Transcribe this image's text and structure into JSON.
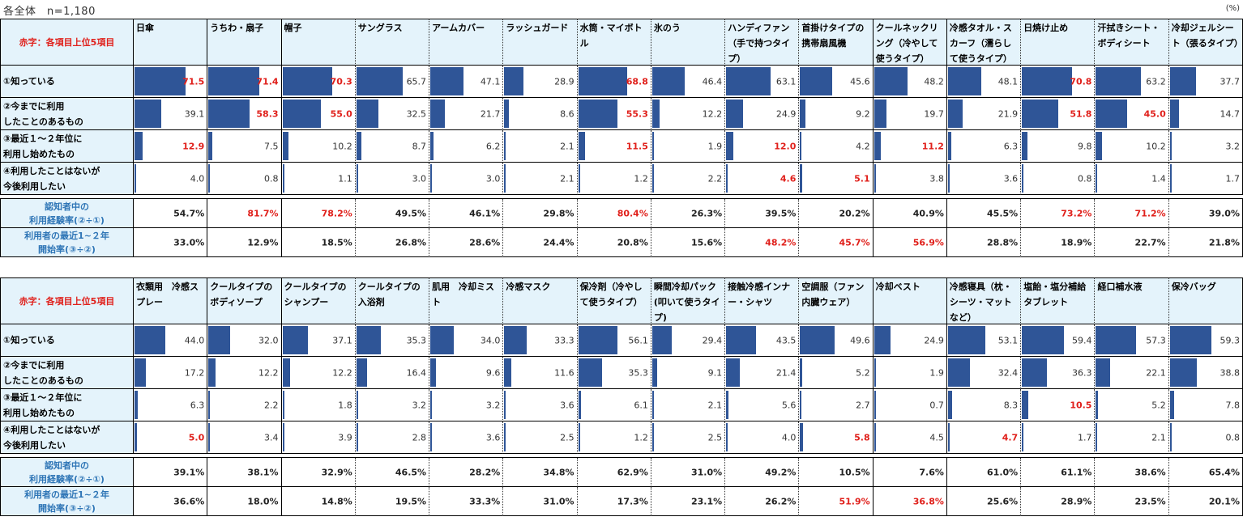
{
  "page": {
    "title": "各全体　n=1,180",
    "unit": "(%)"
  },
  "legend_note": "赤字：各項目上位5項目",
  "row_labels": [
    "①知っている",
    "②今までに利用\nしたことのあるもの",
    "③最近１～２年位に\n利用し始めたもの",
    "④利用したことはないが\n今後利用したい"
  ],
  "calc_labels": [
    "認知者中の\n利用経験率(②÷①)",
    "利用者の最近1~２年\n開始率(③÷②)"
  ],
  "colors": {
    "bar": "#2f5597",
    "highlight": "#e0201b",
    "header_bg": "#e4f3fb",
    "calc_label": "#2e75b6"
  },
  "chart_data": [
    {
      "type": "table",
      "title": "各全体 n=1,180 (table 1)",
      "categories": [
        "日傘",
        "うちわ・扇子",
        "帽子",
        "サングラス",
        "アームカバー",
        "ラッシュガード",
        "水筒・マイボトル",
        "氷のう",
        "ハンディファン（手で持つタイプ）",
        "首掛けタイプの携帯扇風機",
        "クールネックリング（冷やして使うタイプ）",
        "冷感タオル・スカーフ（濡らして使うタイプ）",
        "日焼け止め",
        "汗拭きシート・ボディシート",
        "冷却ジェルシート（張るタイプ）"
      ],
      "series": [
        {
          "name": "①知っている",
          "values": [
            71.5,
            71.4,
            70.3,
            65.7,
            47.1,
            28.9,
            68.8,
            46.4,
            63.1,
            45.6,
            48.2,
            48.1,
            70.8,
            63.2,
            37.7
          ],
          "highlight": [
            true,
            true,
            true,
            false,
            false,
            false,
            true,
            false,
            false,
            false,
            false,
            false,
            true,
            false,
            false
          ]
        },
        {
          "name": "②今までに利用したことのあるもの",
          "values": [
            39.1,
            58.3,
            55.0,
            32.5,
            21.7,
            8.6,
            55.3,
            12.2,
            24.9,
            9.2,
            19.7,
            21.9,
            51.8,
            45.0,
            14.7
          ],
          "highlight": [
            false,
            true,
            true,
            false,
            false,
            false,
            true,
            false,
            false,
            false,
            false,
            false,
            true,
            true,
            false
          ]
        },
        {
          "name": "③最近１～２年位に利用し始めたもの",
          "values": [
            12.9,
            7.5,
            10.2,
            8.7,
            6.2,
            2.1,
            11.5,
            1.9,
            12.0,
            4.2,
            11.2,
            6.3,
            9.8,
            10.2,
            3.2
          ],
          "highlight": [
            true,
            false,
            false,
            false,
            false,
            false,
            true,
            false,
            true,
            false,
            true,
            false,
            false,
            false,
            false
          ]
        },
        {
          "name": "④利用したことはないが今後利用したい",
          "values": [
            4.0,
            0.8,
            1.1,
            3.0,
            3.0,
            2.1,
            1.2,
            2.2,
            4.6,
            5.1,
            3.8,
            3.6,
            0.8,
            1.4,
            1.7
          ],
          "highlight": [
            false,
            false,
            false,
            false,
            false,
            false,
            false,
            false,
            true,
            true,
            false,
            false,
            false,
            false,
            false
          ]
        }
      ],
      "calc": [
        {
          "name": "認知者中の利用経験率(②÷①)",
          "values": [
            "54.7%",
            "81.7%",
            "78.2%",
            "49.5%",
            "46.1%",
            "29.8%",
            "80.4%",
            "26.3%",
            "39.5%",
            "20.2%",
            "40.9%",
            "45.5%",
            "73.2%",
            "71.2%",
            "39.0%"
          ],
          "highlight": [
            false,
            true,
            true,
            false,
            false,
            false,
            true,
            false,
            false,
            false,
            false,
            false,
            true,
            true,
            false
          ]
        },
        {
          "name": "利用者の最近1~２年開始率(③÷②)",
          "values": [
            "33.0%",
            "12.9%",
            "18.5%",
            "26.8%",
            "28.6%",
            "24.4%",
            "20.8%",
            "15.6%",
            "48.2%",
            "45.7%",
            "56.9%",
            "28.8%",
            "18.9%",
            "22.7%",
            "21.8%"
          ],
          "highlight": [
            false,
            false,
            false,
            false,
            false,
            false,
            false,
            false,
            true,
            true,
            true,
            false,
            false,
            false,
            false
          ]
        }
      ],
      "ylim": [
        0,
        100
      ]
    },
    {
      "type": "table",
      "title": "各全体 n=1,180 (table 2)",
      "categories": [
        "衣類用　冷感スプレー",
        "クールタイプのボディソープ",
        "クールタイプのシャンプー",
        "クールタイプの入浴剤",
        "肌用　冷却ミスト",
        "冷感マスク",
        "保冷剤（冷やして使うタイプ）",
        "瞬間冷却パック(叩いて使うタイプ)",
        "接触冷感インナー・シャツ",
        "空調服（ファン内臓ウェア）",
        "冷却ベスト",
        "冷感寝具（枕・シーツ・マットなど）",
        "塩飴・塩分補給タブレット",
        "経口補水液",
        "保冷バッグ"
      ],
      "series": [
        {
          "name": "①知っている",
          "values": [
            44.0,
            32.0,
            37.1,
            35.3,
            34.0,
            33.3,
            56.1,
            29.4,
            43.5,
            49.6,
            24.9,
            53.1,
            59.4,
            57.3,
            59.3
          ],
          "highlight": [
            false,
            false,
            false,
            false,
            false,
            false,
            false,
            false,
            false,
            false,
            false,
            false,
            false,
            false,
            false
          ]
        },
        {
          "name": "②今までに利用したことのあるもの",
          "values": [
            17.2,
            12.2,
            12.2,
            16.4,
            9.6,
            11.6,
            35.3,
            9.1,
            21.4,
            5.2,
            1.9,
            32.4,
            36.3,
            22.1,
            38.8
          ],
          "highlight": [
            false,
            false,
            false,
            false,
            false,
            false,
            false,
            false,
            false,
            false,
            false,
            false,
            false,
            false,
            false
          ]
        },
        {
          "name": "③最近１～２年位に利用し始めたもの",
          "values": [
            6.3,
            2.2,
            1.8,
            3.2,
            3.2,
            3.6,
            6.1,
            2.1,
            5.6,
            2.7,
            0.7,
            8.3,
            10.5,
            5.2,
            7.8
          ],
          "highlight": [
            false,
            false,
            false,
            false,
            false,
            false,
            false,
            false,
            false,
            false,
            false,
            false,
            true,
            false,
            false
          ]
        },
        {
          "name": "④利用したことはないが今後利用したい",
          "values": [
            5.0,
            3.4,
            3.9,
            2.8,
            3.6,
            2.5,
            1.2,
            2.5,
            4.0,
            5.8,
            4.5,
            4.7,
            1.7,
            2.1,
            0.8
          ],
          "highlight": [
            true,
            false,
            false,
            false,
            false,
            false,
            false,
            false,
            false,
            true,
            false,
            true,
            false,
            false,
            false
          ]
        }
      ],
      "calc": [
        {
          "name": "認知者中の利用経験率(②÷①)",
          "values": [
            "39.1%",
            "38.1%",
            "32.9%",
            "46.5%",
            "28.2%",
            "34.8%",
            "62.9%",
            "31.0%",
            "49.2%",
            "10.5%",
            "7.6%",
            "61.0%",
            "61.1%",
            "38.6%",
            "65.4%"
          ],
          "highlight": [
            false,
            false,
            false,
            false,
            false,
            false,
            false,
            false,
            false,
            false,
            false,
            false,
            false,
            false,
            false
          ]
        },
        {
          "name": "利用者の最近1~２年開始率(③÷②)",
          "values": [
            "36.6%",
            "18.0%",
            "14.8%",
            "19.5%",
            "33.3%",
            "31.0%",
            "17.3%",
            "23.1%",
            "26.2%",
            "51.9%",
            "36.8%",
            "25.6%",
            "28.9%",
            "23.5%",
            "20.1%"
          ],
          "highlight": [
            false,
            false,
            false,
            false,
            false,
            false,
            false,
            false,
            false,
            true,
            true,
            false,
            false,
            false,
            false
          ]
        }
      ],
      "ylim": [
        0,
        100
      ]
    }
  ]
}
